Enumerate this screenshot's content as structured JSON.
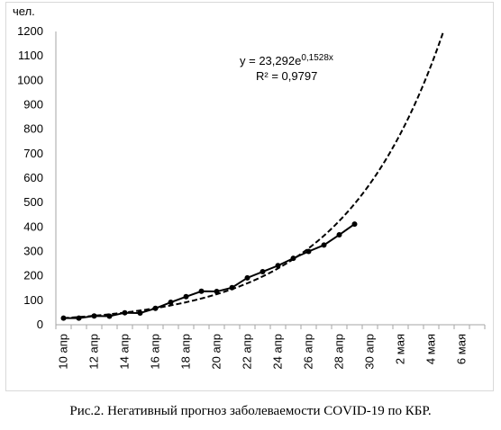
{
  "chart_data": {
    "type": "line",
    "ylabel": "чел.",
    "ylim": [
      0,
      1200
    ],
    "yticks": [
      0,
      100,
      200,
      300,
      400,
      500,
      600,
      700,
      800,
      900,
      1000,
      1100,
      1200
    ],
    "x_tick_labels": [
      "10 апр",
      "12 апр",
      "14 апр",
      "16 апр",
      "18 апр",
      "20 апр",
      "22 апр",
      "24 апр",
      "26 апр",
      "28 апр",
      "30 апр",
      "2 мая",
      "4 мая",
      "6 мая"
    ],
    "x_start_label": "10 апр",
    "grid": false,
    "series": [
      {
        "style": "solid-with-markers",
        "x": [
          "10 апр",
          "11 апр",
          "12 апр",
          "13 апр",
          "14 апр",
          "15 апр",
          "16 апр",
          "17 апр",
          "18 апр",
          "19 апр",
          "20 апр",
          "21 апр",
          "22 апр",
          "23 апр",
          "24 апр",
          "25 апр",
          "26 апр",
          "27 апр",
          "28 апр",
          "29 апр"
        ],
        "values": [
          27,
          27,
          36,
          35,
          49,
          48,
          67,
          92,
          115,
          137,
          136,
          152,
          192,
          217,
          242,
          272,
          300,
          326,
          368,
          412
        ]
      },
      {
        "style": "dashed-trendline",
        "formula": {
          "a": 23.292,
          "b": 0.1528
        }
      }
    ],
    "annotation": {
      "equation_prefix": "y = 23,292e",
      "equation_exponent": "0,1528x",
      "r_squared": "R² = 0,9797"
    }
  },
  "caption": "Рис.2. Негативный прогноз заболеваемости COVID-19 по КБР."
}
